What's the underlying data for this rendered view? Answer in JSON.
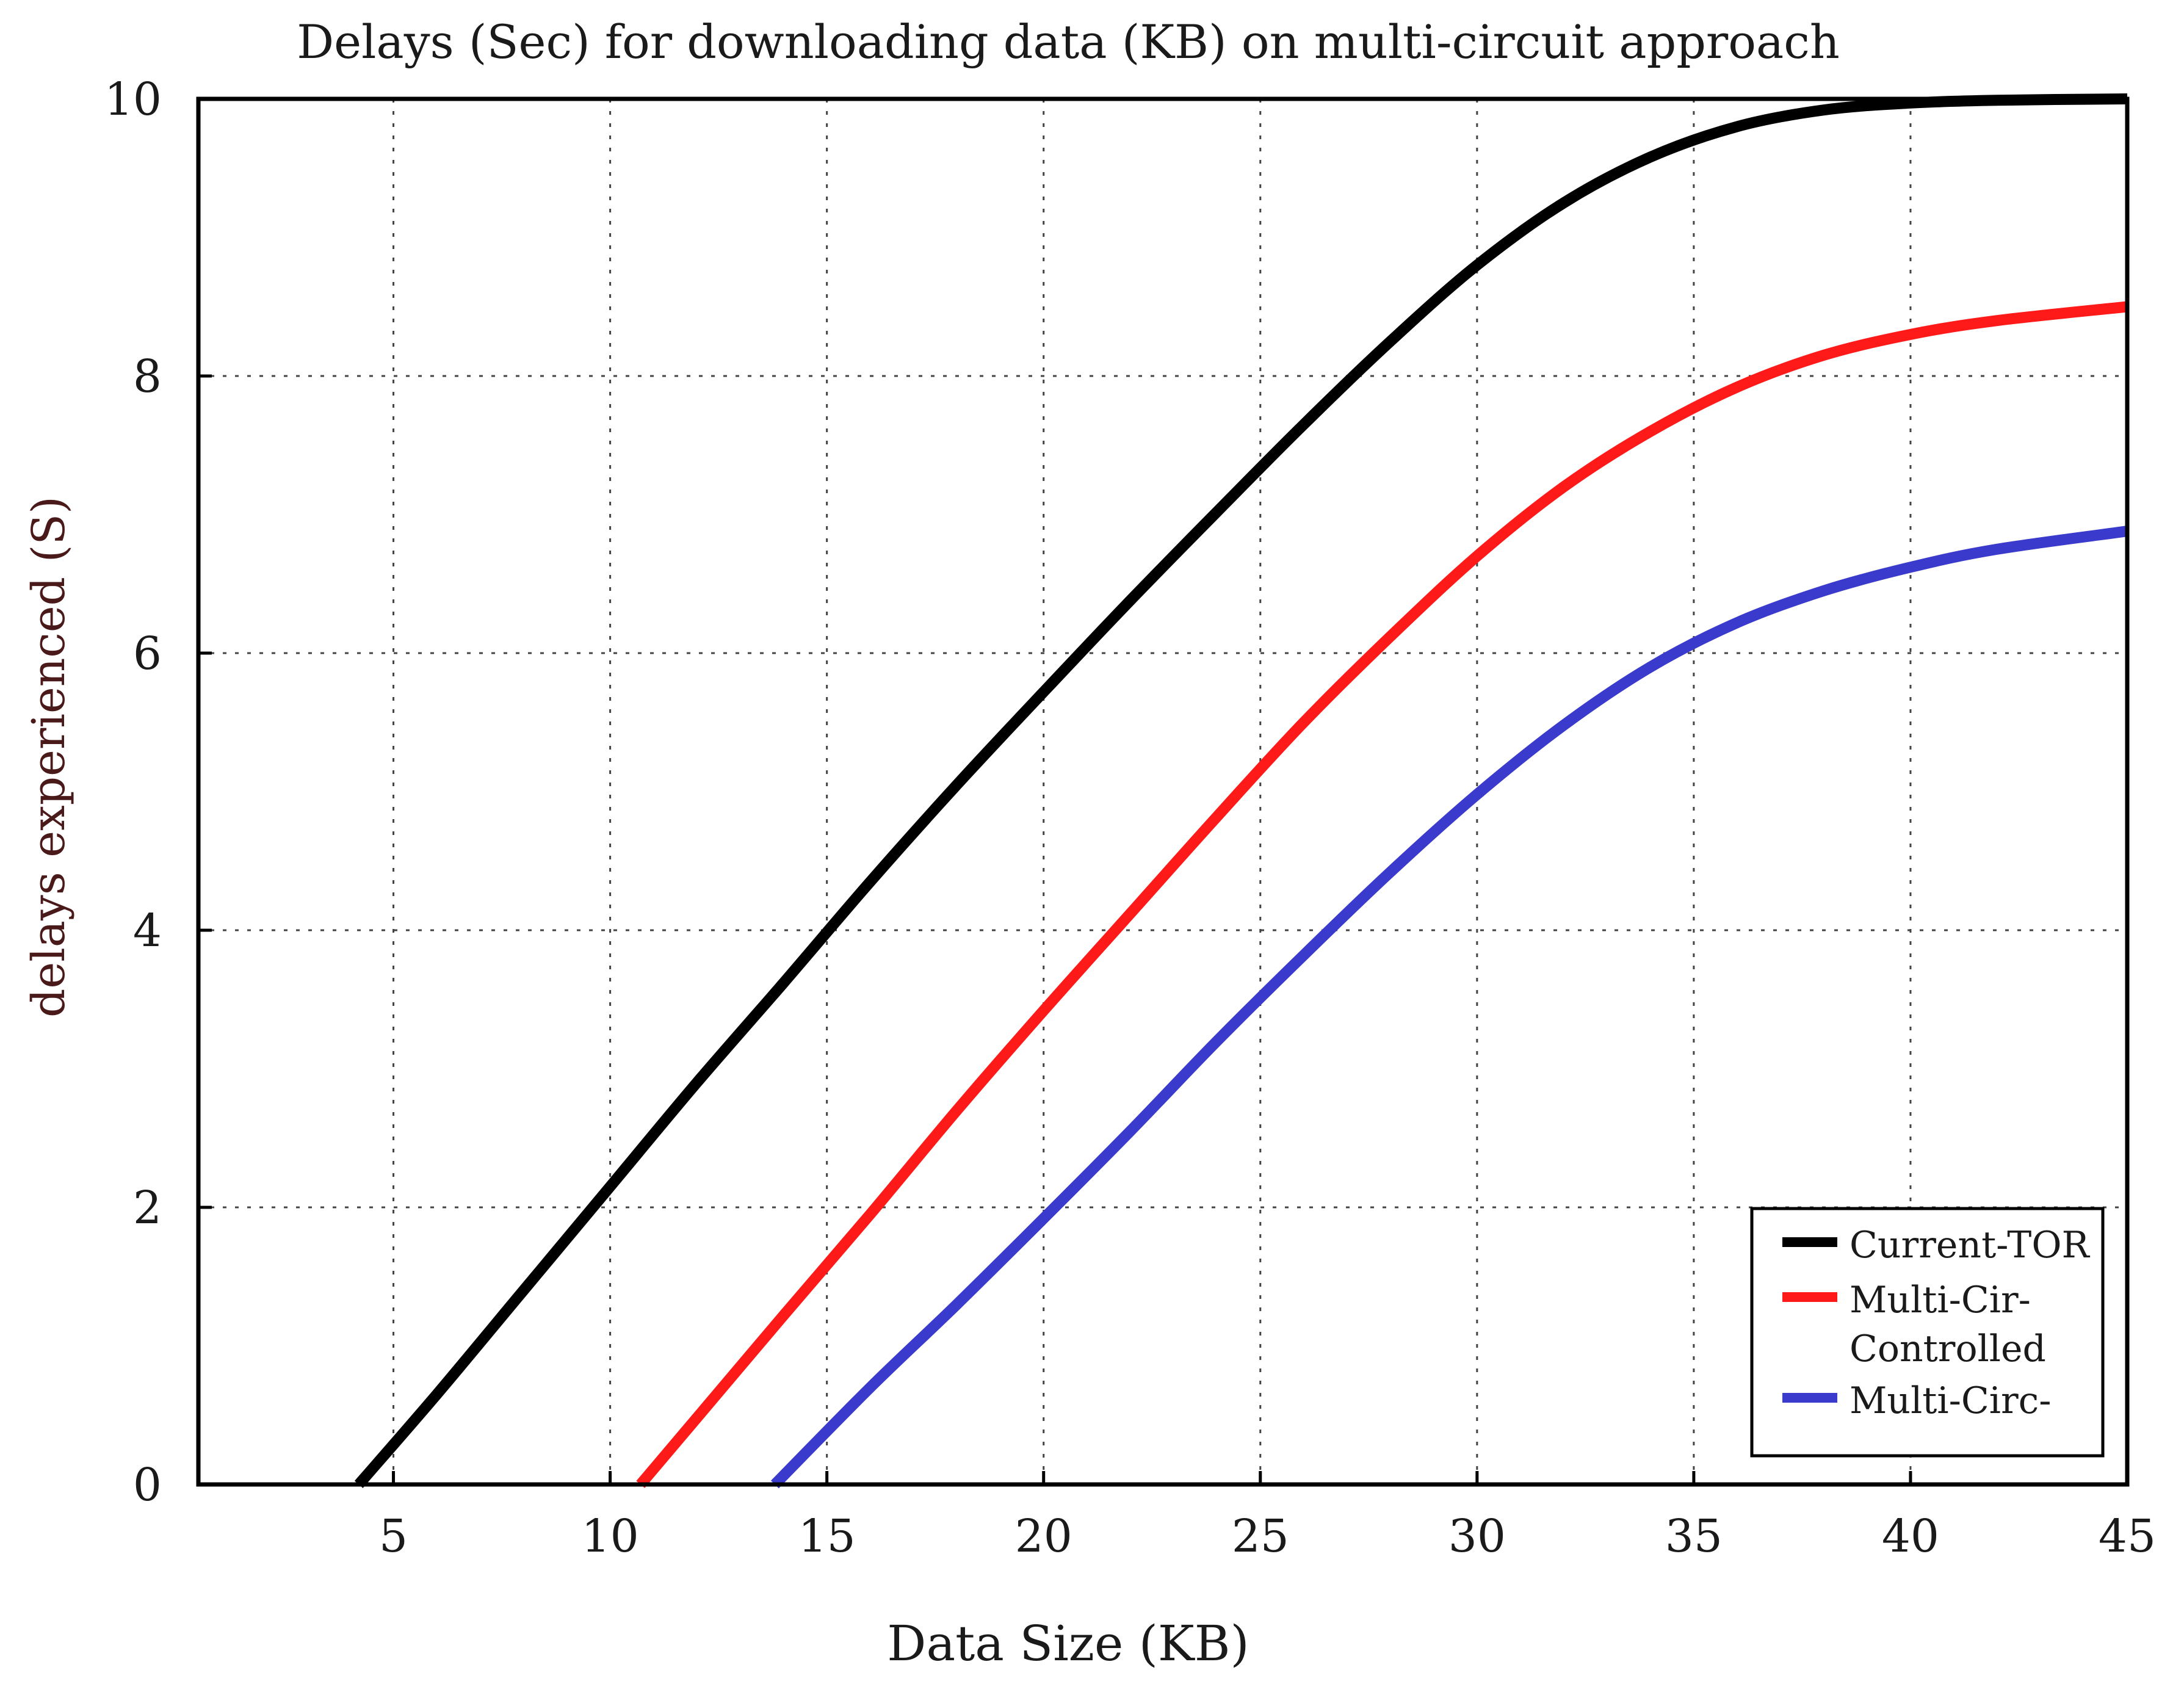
{
  "chart_data": {
    "type": "line",
    "title": "Delays (Sec) for downloading data (KB) on multi-circuit approach",
    "xlabel": "Data  Size (KB)",
    "ylabel": "delays experienced (S)",
    "xlim": [
      0.5,
      45
    ],
    "ylim": [
      0,
      10
    ],
    "xticks": [
      5,
      10,
      15,
      20,
      25,
      30,
      35,
      40,
      45
    ],
    "yticks": [
      0,
      2,
      4,
      6,
      8,
      10
    ],
    "grid": true,
    "legend_position": "bottom-right",
    "series": [
      {
        "name": "Current-TOR",
        "color": "#000000",
        "x": [
          4.2,
          6,
          8,
          10,
          12,
          14,
          16,
          18,
          20,
          22,
          24,
          26,
          28,
          30,
          32,
          34,
          36,
          38,
          40,
          42,
          45
        ],
        "y": [
          0,
          0.65,
          1.4,
          2.15,
          2.9,
          3.62,
          4.35,
          5.05,
          5.72,
          6.38,
          7.02,
          7.65,
          8.25,
          8.8,
          9.25,
          9.58,
          9.8,
          9.92,
          9.97,
          9.99,
          10.0
        ]
      },
      {
        "name": "Multi-Cir-Controlled",
        "color": "#ff1a1a",
        "x": [
          10.7,
          12,
          14,
          16,
          18,
          20,
          22,
          24,
          26,
          28,
          30,
          32,
          34,
          36,
          38,
          40,
          42,
          45
        ],
        "y": [
          0,
          0.48,
          1.22,
          1.95,
          2.7,
          3.42,
          4.12,
          4.82,
          5.5,
          6.12,
          6.7,
          7.2,
          7.6,
          7.92,
          8.15,
          8.3,
          8.4,
          8.5
        ]
      },
      {
        "name": "Multi-Circ-",
        "color": "#3a3acc",
        "x": [
          13.8,
          16,
          18,
          20,
          22,
          24,
          26,
          28,
          30,
          32,
          34,
          36,
          38,
          40,
          42,
          45
        ],
        "y": [
          0,
          0.7,
          1.3,
          1.92,
          2.55,
          3.2,
          3.82,
          4.42,
          4.98,
          5.48,
          5.9,
          6.22,
          6.45,
          6.62,
          6.75,
          6.88
        ]
      }
    ],
    "legend_entries": [
      "Current-TOR",
      "Multi-Cir-",
      "Controlled",
      "Multi-Circ-"
    ]
  }
}
